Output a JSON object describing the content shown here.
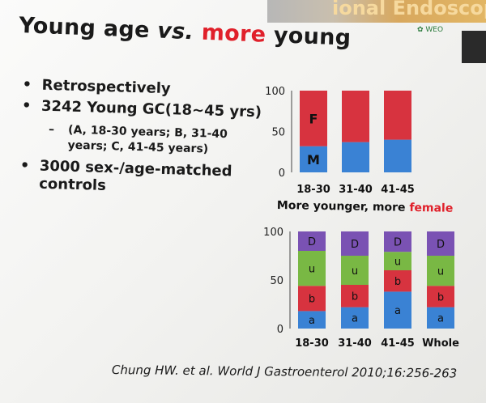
{
  "header": {
    "banner_text": "ional Endoscopy",
    "logo_text": "WEO"
  },
  "title": {
    "part1": "Young age ",
    "vs": "vs.",
    "red": "more",
    "part2": " young"
  },
  "bullets": {
    "b1": "Retrospectively",
    "b2": "3242 Young GC(18~45 yrs)",
    "sub": "(A, 18-30 years; B, 31-40 years; C, 41-45 years)",
    "b3": "3000 sex-/age-matched controls"
  },
  "caption": {
    "text": "More younger, more ",
    "red": "female"
  },
  "citation": "Chung HW. et al. World J Gastroenterol 2010;16:256-263",
  "colors": {
    "red": "#d7333f",
    "blue": "#3a82d4",
    "green": "#79b844",
    "purple": "#7a52b3",
    "accent_red": "#e0202a"
  },
  "chart_data": [
    {
      "type": "bar",
      "stacked": true,
      "categories": [
        "18-30",
        "31-40",
        "41-45"
      ],
      "series": [
        {
          "name": "M",
          "values": [
            32,
            37,
            40
          ],
          "color": "#3a82d4"
        },
        {
          "name": "F",
          "values": [
            68,
            63,
            60
          ],
          "color": "#d7333f"
        }
      ],
      "ylim": [
        0,
        100
      ],
      "yticks": [
        0,
        50,
        100
      ],
      "segment_labels": [
        {
          "category": "18-30",
          "series": "F",
          "text": "F"
        },
        {
          "category": "18-30",
          "series": "M",
          "text": "M"
        }
      ]
    },
    {
      "type": "bar",
      "stacked": true,
      "categories": [
        "18-30",
        "31-40",
        "41-45",
        "Whole"
      ],
      "series": [
        {
          "name": "a",
          "values": [
            18,
            22,
            38,
            22
          ],
          "color": "#3a82d4"
        },
        {
          "name": "b",
          "values": [
            26,
            23,
            22,
            22
          ],
          "color": "#d7333f"
        },
        {
          "name": "u",
          "values": [
            36,
            30,
            19,
            31
          ],
          "color": "#79b844"
        },
        {
          "name": "D",
          "values": [
            20,
            25,
            21,
            25
          ],
          "color": "#7a52b3"
        }
      ],
      "ylim": [
        0,
        100
      ],
      "yticks": [
        0,
        50,
        100
      ]
    }
  ]
}
